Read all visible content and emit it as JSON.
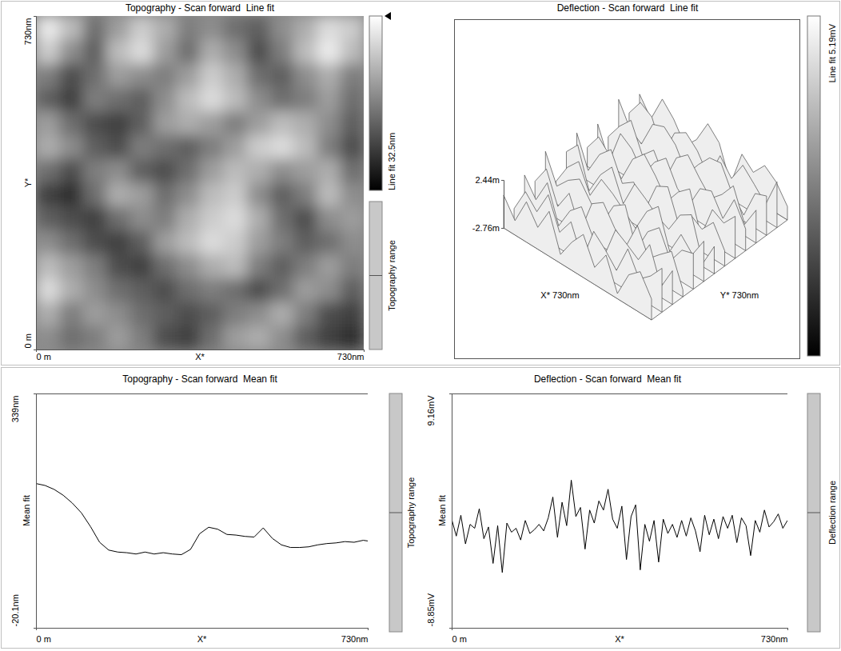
{
  "chart_data": [
    {
      "type": "heatmap",
      "title": "Topography - Scan forward  Line fit",
      "x_label": "X*",
      "y_label": "Y*",
      "xlim": [
        0,
        730
      ],
      "ylim": [
        0,
        730
      ],
      "xticks": [
        {
          "value": 0,
          "label": "0 m"
        },
        {
          "value": 730,
          "label": "730nm"
        }
      ],
      "yticks": [
        {
          "value": 0,
          "label": "0 m"
        },
        {
          "value": 730,
          "label": "730nm"
        }
      ],
      "cells": [
        [
          30,
          24,
          14,
          20,
          26,
          22,
          16,
          18,
          14,
          12,
          18,
          22,
          28,
          26
        ],
        [
          26,
          18,
          12,
          24,
          28,
          20,
          14,
          22,
          18,
          10,
          16,
          24,
          30,
          24
        ],
        [
          16,
          10,
          14,
          20,
          18,
          16,
          20,
          26,
          22,
          14,
          12,
          18,
          22,
          16
        ],
        [
          12,
          8,
          16,
          14,
          12,
          18,
          24,
          28,
          24,
          18,
          14,
          16,
          20,
          14
        ],
        [
          20,
          14,
          10,
          8,
          12,
          20,
          22,
          20,
          16,
          20,
          24,
          22,
          18,
          12
        ],
        [
          22,
          18,
          12,
          10,
          16,
          14,
          12,
          16,
          20,
          26,
          28,
          24,
          16,
          10
        ],
        [
          14,
          10,
          16,
          18,
          12,
          10,
          14,
          20,
          24,
          22,
          18,
          20,
          22,
          14
        ],
        [
          8,
          6,
          14,
          22,
          20,
          14,
          18,
          24,
          26,
          18,
          12,
          16,
          24,
          18
        ],
        [
          12,
          10,
          8,
          14,
          18,
          16,
          22,
          26,
          28,
          22,
          14,
          10,
          18,
          20
        ],
        [
          18,
          14,
          10,
          8,
          12,
          20,
          24,
          28,
          26,
          20,
          16,
          12,
          14,
          18
        ],
        [
          24,
          20,
          16,
          10,
          8,
          14,
          18,
          22,
          24,
          16,
          12,
          16,
          20,
          16
        ],
        [
          28,
          22,
          18,
          14,
          12,
          10,
          14,
          16,
          14,
          10,
          14,
          20,
          18,
          12
        ],
        [
          22,
          16,
          20,
          18,
          14,
          12,
          10,
          12,
          16,
          18,
          22,
          16,
          10,
          8
        ],
        [
          18,
          14,
          16,
          20,
          16,
          10,
          8,
          14,
          20,
          22,
          18,
          12,
          8,
          6
        ]
      ],
      "colorbar": {
        "label": "Line fit 32.5nm",
        "range": [
          0,
          32.5
        ]
      },
      "range_bar_label": "Topography range"
    },
    {
      "type": "surface",
      "title": "Deflection - Scan forward  Line fit",
      "x_label": "X* 730nm",
      "y_label": "Y* 730nm",
      "xlim": [
        0,
        730
      ],
      "ylim": [
        0,
        730
      ],
      "zlim": [
        -2.76,
        2.44
      ],
      "zticks": [
        {
          "value": -2.76,
          "label": "-2.76m"
        },
        {
          "value": 2.44,
          "label": "2.44m"
        }
      ],
      "z": [
        [
          0.8,
          -1.2,
          1.6,
          -0.4,
          2.1,
          -1.8,
          0.3,
          1.9,
          -0.9,
          1.2,
          -2.2,
          0.6,
          1.7,
          -0.5
        ],
        [
          -1.5,
          1.1,
          -0.3,
          2.3,
          -1.0,
          0.9,
          -2.4,
          1.4,
          0.2,
          -1.3,
          1.8,
          -0.7,
          0.4,
          2.0
        ],
        [
          1.3,
          -0.6,
          2.0,
          -1.9,
          0.5,
          1.7,
          -0.8,
          -2.1,
          1.5,
          0.7,
          -0.2,
          2.2,
          -1.6,
          0.9
        ],
        [
          -0.2,
          1.9,
          -1.4,
          0.8,
          -2.5,
          1.2,
          2.1,
          0.1,
          -1.1,
          1.9,
          -0.9,
          0.3,
          1.4,
          -2.0
        ],
        [
          2.2,
          -0.8,
          0.6,
          1.5,
          -0.3,
          -1.7,
          0.9,
          1.8,
          -2.3,
          0.4,
          1.6,
          -1.2,
          0.7,
          1.1
        ],
        [
          -1.9,
          0.4,
          1.8,
          -1.1,
          1.4,
          0.6,
          -0.5,
          -1.6,
          1.0,
          2.3,
          -1.8,
          0.8,
          -0.6,
          1.6
        ],
        [
          0.5,
          2.0,
          -2.2,
          0.3,
          1.9,
          -1.3,
          1.6,
          0.7,
          -0.4,
          -1.0,
          1.3,
          2.1,
          -2.4,
          0.2
        ],
        [
          1.7,
          -1.6,
          0.9,
          2.2,
          -0.7,
          0.2,
          -2.0,
          1.3,
          2.0,
          -1.5,
          0.5,
          -0.3,
          1.2,
          -1.1
        ],
        [
          -0.7,
          1.2,
          -0.1,
          -1.8,
          1.1,
          2.4,
          0.8,
          -1.2,
          0.6,
          1.7,
          -2.6,
          1.0,
          0.3,
          1.8
        ],
        [
          1.0,
          -2.3,
          1.5,
          0.6,
          -1.4,
          0.7,
          1.9,
          -0.6,
          -1.7,
          0.9,
          1.4,
          -0.8,
          2.0,
          -0.4
        ],
        [
          -1.2,
          0.7,
          2.1,
          -0.9,
          0.4,
          -2.0,
          1.1,
          2.2,
          0.5,
          -1.0,
          0.2,
          1.9,
          -1.5,
          0.8
        ],
        [
          2.0,
          -0.4,
          -1.3,
          1.6,
          2.1,
          0.9,
          -1.5,
          0.3,
          1.8,
          2.0,
          -0.6,
          -2.1,
          1.0,
          1.5
        ],
        [
          -0.3,
          1.6,
          0.8,
          -2.4,
          0.6,
          1.4,
          0.2,
          -1.9,
          1.2,
          -0.5,
          1.7,
          0.4,
          -1.0,
          2.2
        ],
        [
          0.9,
          -1.0,
          1.9,
          0.5,
          -1.6,
          -0.2,
          2.3,
          1.0,
          -2.7,
          1.3,
          0.1,
          1.6,
          0.6,
          -1.3
        ]
      ],
      "colorbar": {
        "label": "Line fit 5.19mV"
      }
    },
    {
      "type": "line",
      "title": "Topography - Scan forward  Mean fit",
      "x_label": "X*",
      "y_label": "Mean fit",
      "x": [
        0,
        20,
        40,
        60,
        80,
        100,
        120,
        140,
        160,
        180,
        200,
        220,
        240,
        260,
        280,
        300,
        320,
        340,
        360,
        380,
        400,
        420,
        440,
        460,
        480,
        500,
        520,
        540,
        560,
        580,
        600,
        620,
        640,
        660,
        680,
        700,
        720,
        730
      ],
      "xlim": [
        0,
        730
      ],
      "xticks": [
        {
          "value": 0,
          "label": "0 m"
        },
        {
          "value": 730,
          "label": "730nm"
        }
      ],
      "ylim": [
        -20.1,
        339
      ],
      "yticks": [
        {
          "value": -20.1,
          "label": "-20.1nm"
        },
        {
          "value": 339,
          "label": "339nm"
        }
      ],
      "series": [
        {
          "color": "#000000",
          "values": [
            201,
            198,
            192,
            183,
            171,
            156,
            135,
            111,
            99,
            96,
            95,
            93,
            96,
            93,
            95,
            93,
            92,
            100,
            124,
            134,
            131,
            123,
            122,
            120,
            119,
            133,
            117,
            107,
            103,
            103,
            104,
            107,
            109,
            110,
            112,
            111,
            114,
            113
          ]
        }
      ],
      "range_bar_label": "Topography range"
    },
    {
      "type": "line",
      "title": "Deflection - Scan forward  Mean fit",
      "x_label": "X*",
      "y_label": "Mean fit",
      "x": [
        0,
        10,
        20,
        30,
        40,
        50,
        60,
        70,
        80,
        90,
        100,
        110,
        120,
        130,
        140,
        150,
        160,
        170,
        180,
        190,
        200,
        210,
        220,
        230,
        240,
        250,
        260,
        270,
        280,
        290,
        300,
        310,
        320,
        330,
        340,
        350,
        360,
        370,
        380,
        390,
        400,
        410,
        420,
        430,
        440,
        450,
        460,
        470,
        480,
        490,
        500,
        510,
        520,
        530,
        540,
        550,
        560,
        570,
        580,
        590,
        600,
        610,
        620,
        630,
        640,
        650,
        660,
        670,
        680,
        690,
        700,
        710,
        720,
        730
      ],
      "xlim": [
        0,
        730
      ],
      "xticks": [
        {
          "value": 0,
          "label": "0 m"
        },
        {
          "value": 730,
          "label": "730nm"
        }
      ],
      "ylim": [
        -8.85,
        9.16
      ],
      "yticks": [
        {
          "value": -8.85,
          "label": "-8.85mV"
        },
        {
          "value": 9.16,
          "label": "9.16mV"
        }
      ],
      "series": [
        {
          "color": "#000000",
          "values": [
            -0.5,
            -1.8,
            -0.2,
            -2.4,
            -0.9,
            -1.2,
            0.3,
            -2.0,
            -1.1,
            -3.9,
            -1.0,
            -4.6,
            -0.8,
            -1.5,
            -1.2,
            -2.1,
            -0.6,
            -1.6,
            -1.3,
            -0.9,
            -1.4,
            -0.4,
            1.2,
            -1.9,
            0.8,
            -1.0,
            2.5,
            -0.3,
            0.4,
            -2.8,
            0.2,
            -0.8,
            0.9,
            0.2,
            1.8,
            -0.5,
            -1.2,
            0.5,
            -3.6,
            -0.3,
            0.6,
            -4.4,
            -0.9,
            -2.2,
            -0.6,
            -3.8,
            -0.5,
            -1.6,
            -0.9,
            -1.9,
            -0.6,
            -1.8,
            -0.4,
            -1.4,
            -3.0,
            -0.2,
            -1.7,
            -0.5,
            -2.0,
            -0.3,
            -1.2,
            -0.2,
            -2.3,
            -0.4,
            -1.0,
            -3.3,
            -0.6,
            -1.5,
            0.2,
            -1.1,
            -0.7,
            -0.1,
            -1.2,
            -0.6
          ]
        }
      ],
      "range_bar_label": "Deflection range"
    }
  ]
}
